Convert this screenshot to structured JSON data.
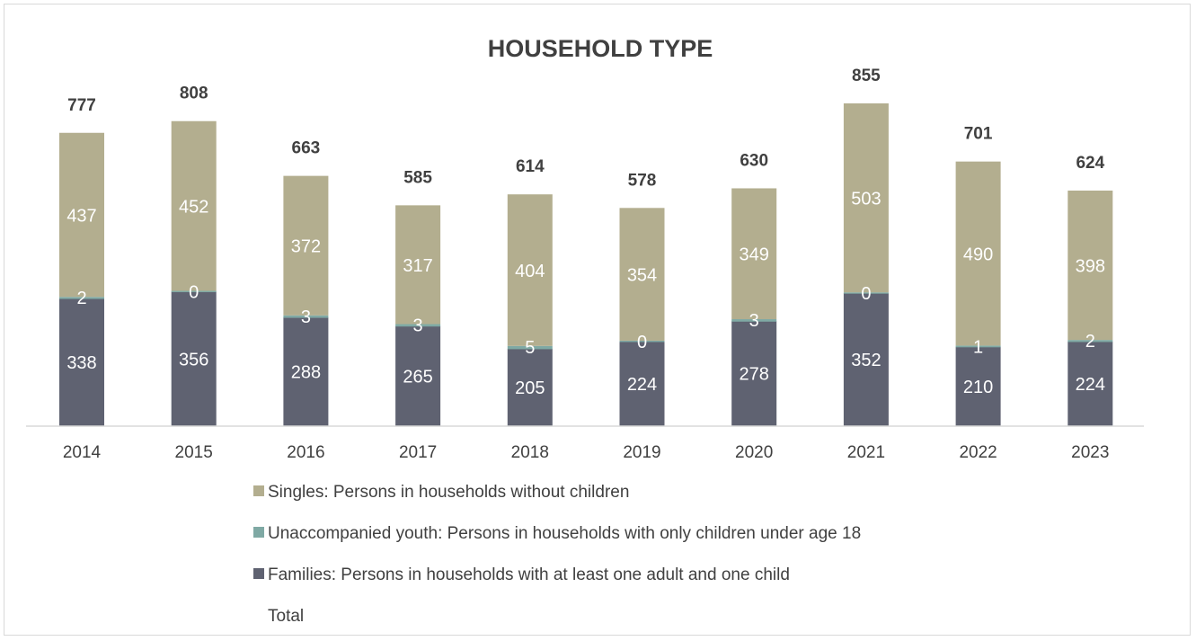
{
  "chart_data": {
    "type": "bar",
    "stacked": true,
    "title": "HOUSEHOLD TYPE",
    "xlabel": "",
    "ylabel": "",
    "categories": [
      "2014",
      "2015",
      "2016",
      "2017",
      "2018",
      "2019",
      "2020",
      "2021",
      "2022",
      "2023"
    ],
    "series": [
      {
        "name": "Families: Persons in households with at least one adult and one child",
        "color": "#5f6271",
        "values": [
          338,
          356,
          288,
          265,
          205,
          224,
          278,
          352,
          210,
          224
        ]
      },
      {
        "name": "Unaccompanied youth: Persons in households with only children under age 18",
        "color": "#7fa9a4",
        "values": [
          2,
          0,
          3,
          3,
          5,
          0,
          3,
          0,
          1,
          2
        ]
      },
      {
        "name": "Singles: Persons in households without children",
        "color": "#b3ae8f",
        "values": [
          437,
          452,
          372,
          317,
          404,
          354,
          349,
          503,
          490,
          398
        ]
      }
    ],
    "totals": {
      "name": "Total",
      "values": [
        777,
        808,
        663,
        585,
        614,
        578,
        630,
        855,
        701,
        624
      ]
    },
    "ylim": [
      0,
      855
    ],
    "grid": false,
    "legend_position": "bottom",
    "legend_order": [
      "Singles: Persons in households without children",
      "Unaccompanied youth: Persons in households with only children under age 18",
      "Families: Persons in households with at least one adult and one child",
      "Total"
    ]
  }
}
